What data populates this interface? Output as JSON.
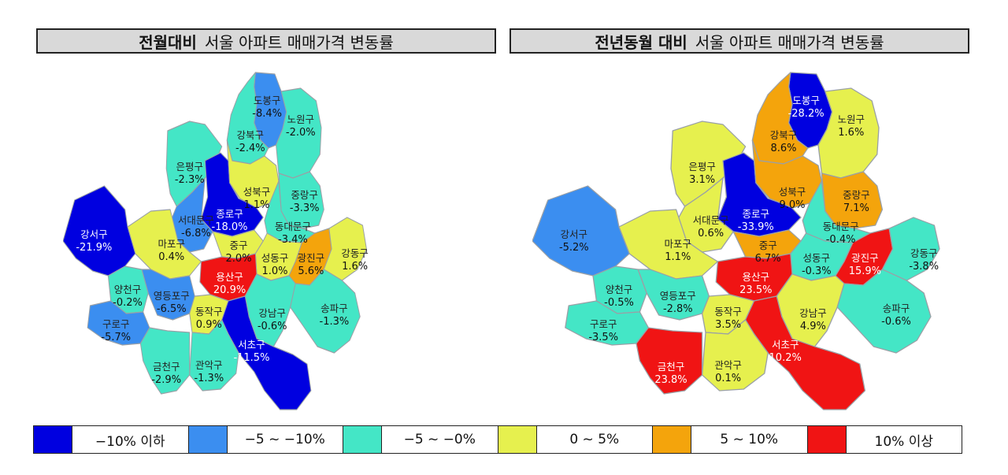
{
  "titles": {
    "left": {
      "bold": "전월대비",
      "rest": "서울 아파트 매매가격 변동률"
    },
    "right": {
      "bold": "전년동월 대비",
      "rest": "서울 아파트 매매가격 변동률"
    }
  },
  "colors": {
    "c1": "#0000e0",
    "c2": "#3b8ef0",
    "c3": "#44e6c6",
    "c4": "#e6f04e",
    "c5": "#f4a40c",
    "c6": "#f01414"
  },
  "legend": [
    {
      "label": "−10% 이하",
      "color": "#0000e0"
    },
    {
      "label": "−5 ~ −10%",
      "color": "#3b8ef0"
    },
    {
      "label": "−5 ~ −0%",
      "color": "#44e6c6"
    },
    {
      "label": "0 ~ 5%",
      "color": "#e6f04e"
    },
    {
      "label": "5 ~ 10%",
      "color": "#f4a40c"
    },
    {
      "label": "10% 이상",
      "color": "#f01414"
    }
  ],
  "districts": [
    {
      "id": "dobong",
      "name": "도봉구",
      "left": "-8.4%",
      "right": "-28.2%"
    },
    {
      "id": "nowon",
      "name": "노원구",
      "left": "-2.0%",
      "right": "1.6%"
    },
    {
      "id": "gangbuk",
      "name": "강북구",
      "left": "-2.4%",
      "right": "8.6%"
    },
    {
      "id": "eunpyeong",
      "name": "은평구",
      "left": "-2.3%",
      "right": "3.1%"
    },
    {
      "id": "jongno",
      "name": "종로구",
      "left": "-18.0%",
      "right": "-33.9%"
    },
    {
      "id": "seongbuk",
      "name": "성북구",
      "left": "1.1%",
      "right": "9.0%"
    },
    {
      "id": "jungnang",
      "name": "중랑구",
      "left": "-3.3%",
      "right": "7.1%"
    },
    {
      "id": "dongdaemun",
      "name": "동대문구",
      "left": "-3.4%",
      "right": "-0.4%"
    },
    {
      "id": "seodaemun",
      "name": "서대문구",
      "left": "-6.8%",
      "right": "0.6%"
    },
    {
      "id": "mapo",
      "name": "마포구",
      "left": "0.4%",
      "right": "1.1%"
    },
    {
      "id": "jung",
      "name": "중구",
      "left": "2.0%",
      "right": "6.7%"
    },
    {
      "id": "seongdong",
      "name": "성동구",
      "left": "1.0%",
      "right": "-0.3%"
    },
    {
      "id": "gwangjin",
      "name": "광진구",
      "left": "5.6%",
      "right": "15.9%"
    },
    {
      "id": "gangdong",
      "name": "강동구",
      "left": "1.6%",
      "right": "-3.8%"
    },
    {
      "id": "gangseo",
      "name": "강서구",
      "left": "-21.9%",
      "right": "-5.2%"
    },
    {
      "id": "yangcheon",
      "name": "양천구",
      "left": "-0.2%",
      "right": "-0.5%"
    },
    {
      "id": "yeongdeungpo",
      "name": "영등포구",
      "left": "-6.5%",
      "right": "-2.8%"
    },
    {
      "id": "yongsan",
      "name": "용산구",
      "left": "20.9%",
      "right": "23.5%"
    },
    {
      "id": "guro",
      "name": "구로구",
      "left": "-5.7%",
      "right": "-3.5%"
    },
    {
      "id": "dongjak",
      "name": "동작구",
      "left": "0.9%",
      "right": "3.5%"
    },
    {
      "id": "gangnam",
      "name": "강남구",
      "left": "-0.6%",
      "right": "4.9%"
    },
    {
      "id": "songpa",
      "name": "송파구",
      "left": "-1.3%",
      "right": "-0.6%"
    },
    {
      "id": "seocho",
      "name": "서초구",
      "left": "-11.5%",
      "right": "10.2%"
    },
    {
      "id": "gwanak",
      "name": "관악구",
      "left": "-1.3%",
      "right": "0.1%"
    },
    {
      "id": "geumcheon",
      "name": "금천구",
      "left": "-2.9%",
      "right": "23.8%"
    }
  ]
}
